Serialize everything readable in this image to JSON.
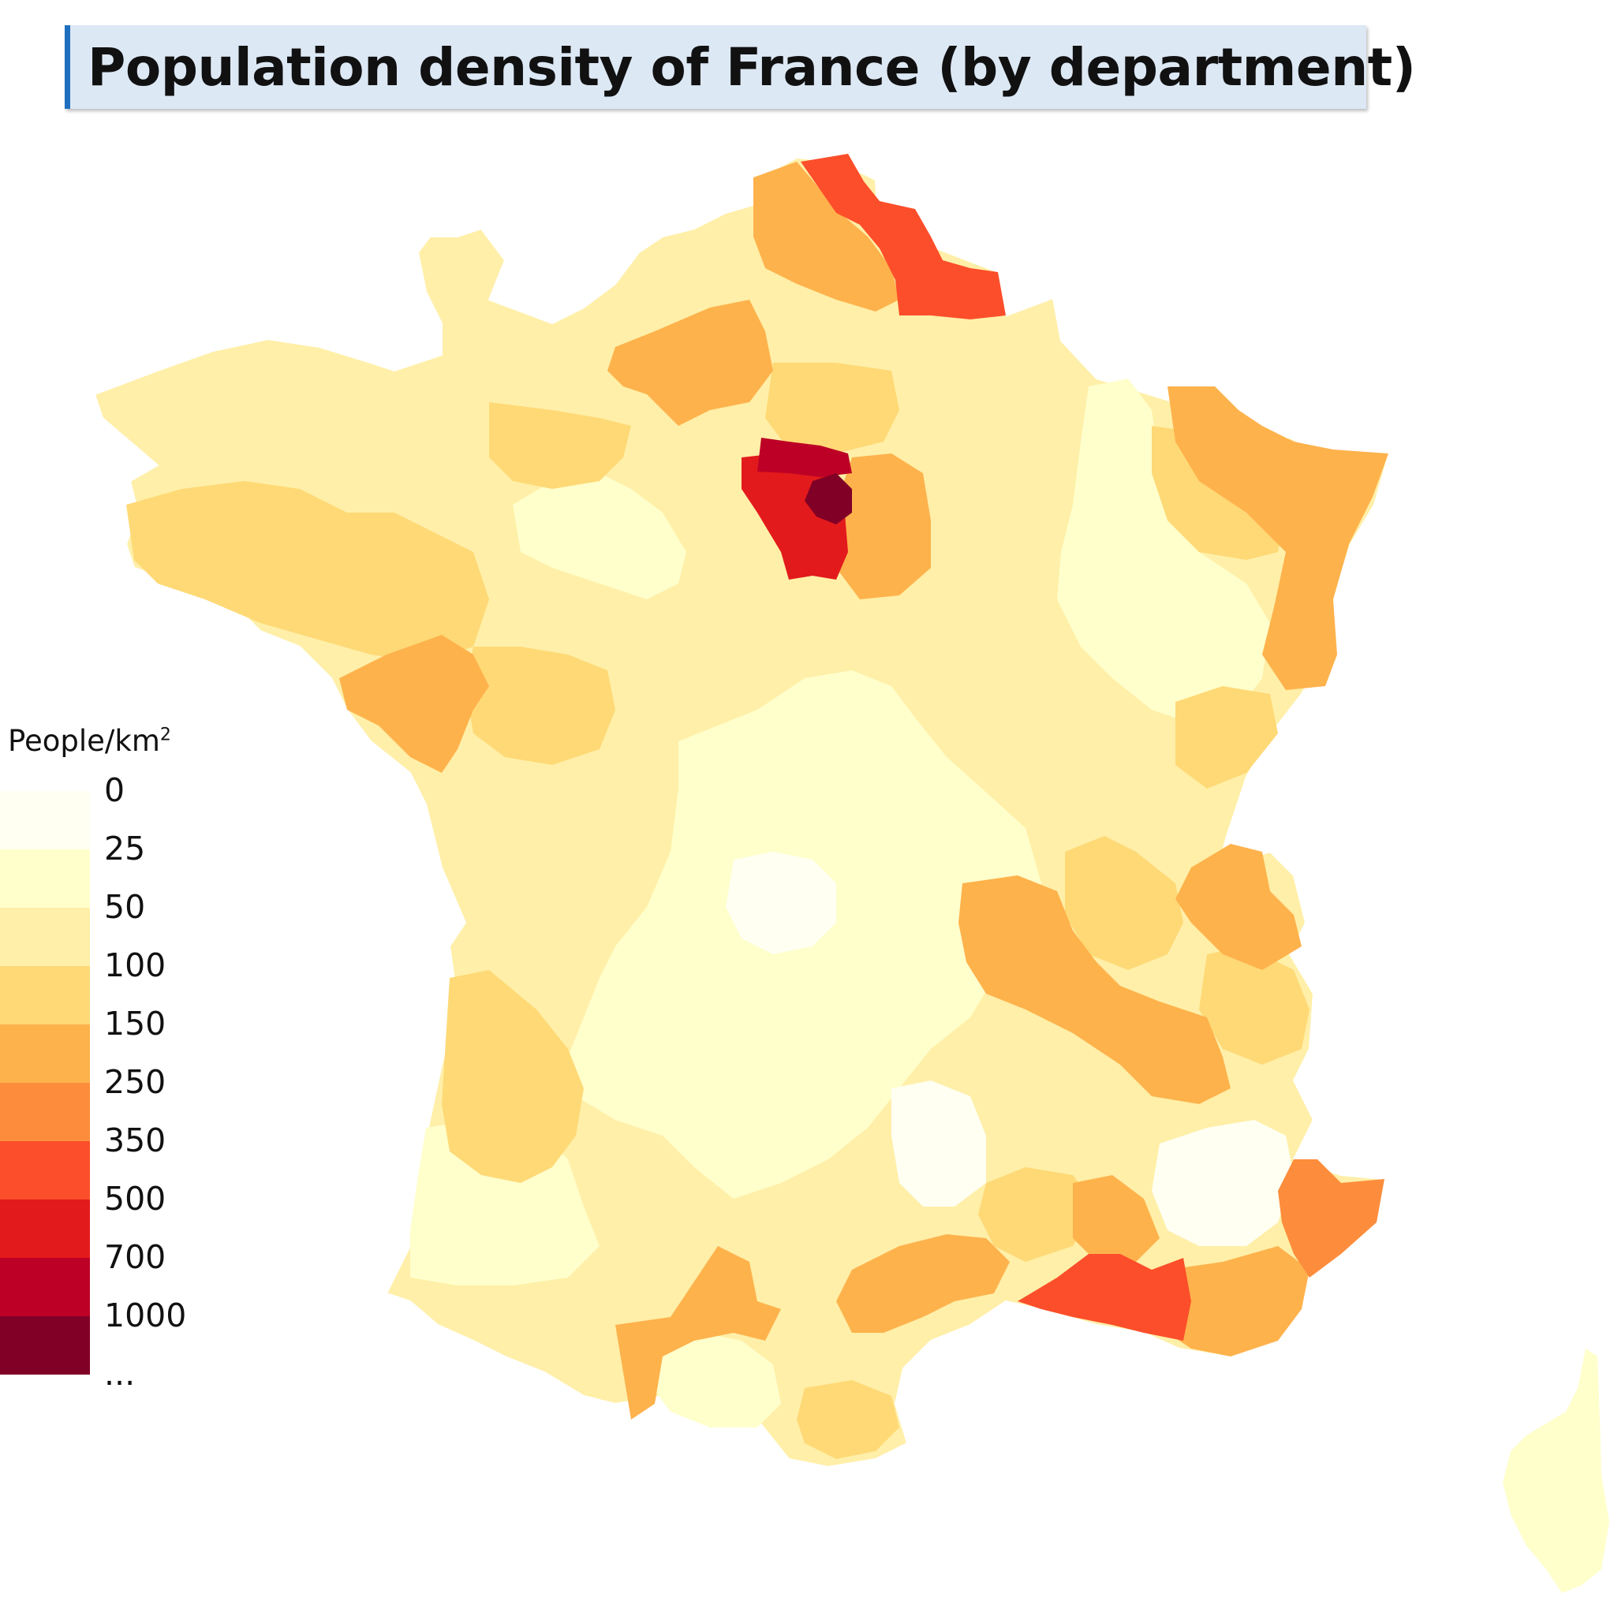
{
  "title": "Population density of France (by department)",
  "legend": {
    "title": "People/km",
    "title_sup": "2",
    "colors": [
      "#fffff2",
      "#ffffcc",
      "#ffefa8",
      "#fed976",
      "#feb24c",
      "#fd8d3c",
      "#fc4e2a",
      "#e31a1c",
      "#bd0026",
      "#800026"
    ],
    "labels": [
      "0",
      "25",
      "50",
      "100",
      "150",
      "250",
      "350",
      "500",
      "700",
      "1000",
      "..."
    ]
  },
  "colors": {
    "title_bg": "#dde8f5",
    "title_accent": "#1f6fc0"
  }
}
